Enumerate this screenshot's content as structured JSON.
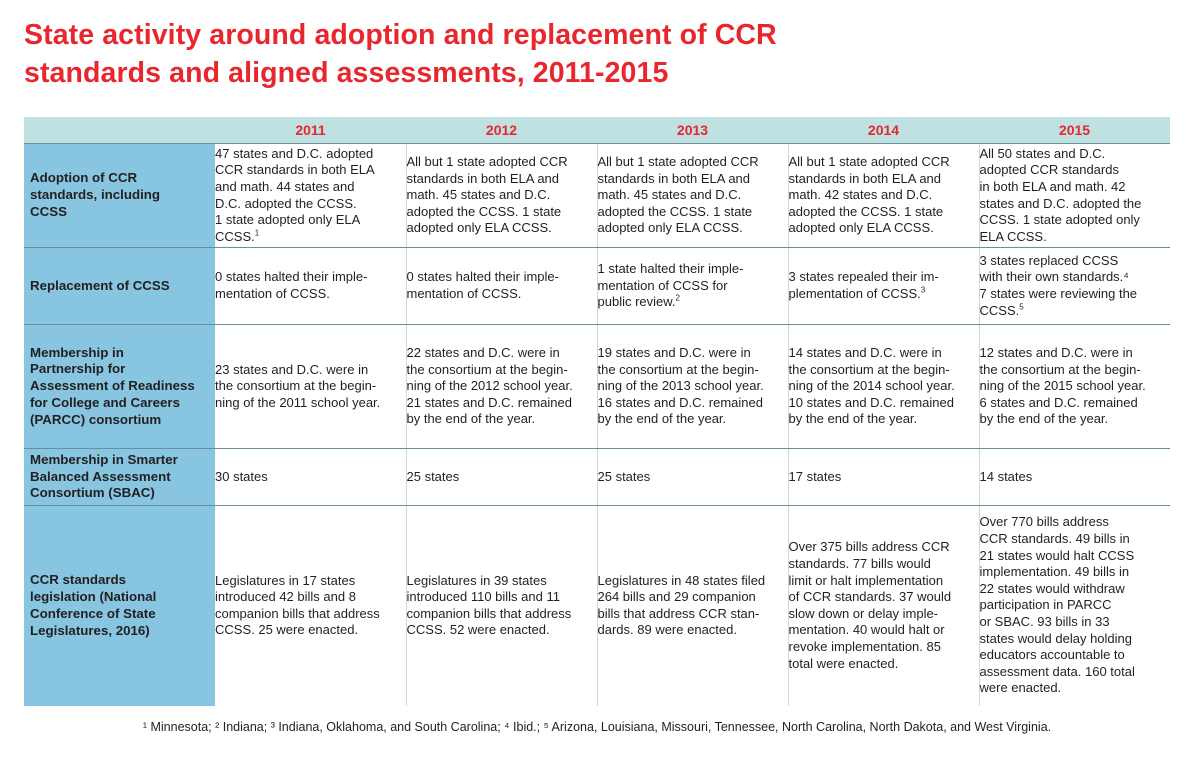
{
  "title": {
    "line1": "State activity around adoption and replacement of CCR",
    "line2": "standards and aligned assessments, 2011-2015"
  },
  "table": {
    "columns": [
      "2011",
      "2012",
      "2013",
      "2014",
      "2015"
    ],
    "rows": [
      {
        "header": [
          "Adoption of CCR",
          "standards, including",
          "CCSS"
        ],
        "cells": [
          {
            "text": "47 states and D.C. adopted\nCCR standards in both ELA\nand math. 44 states and\nD.C. adopted the CCSS.\n1 state adopted only ELA\nCCSS.",
            "sup": "1"
          },
          {
            "text": "All but 1 state adopted CCR\nstandards in both ELA and\nmath. 45 states and D.C.\nadopted the CCSS. 1 state\nadopted only ELA CCSS.",
            "sup": ""
          },
          {
            "text": "All but 1 state adopted CCR\nstandards in both ELA and\nmath. 45 states and D.C.\nadopted the CCSS. 1 state\nadopted only ELA CCSS.",
            "sup": ""
          },
          {
            "text": "All but 1 state adopted CCR\nstandards in both ELA and\nmath. 42 states and D.C.\nadopted the CCSS. 1 state\nadopted only ELA CCSS.",
            "sup": ""
          },
          {
            "text": "All 50 states and D.C.\nadopted CCR standards\nin both ELA and math. 42\nstates and D.C. adopted the\nCCSS. 1 state adopted only\nELA CCSS.",
            "sup": ""
          }
        ]
      },
      {
        "header": [
          "Replacement of CCSS"
        ],
        "cells": [
          {
            "text": "0 states halted their imple-\nmentation of CCSS.",
            "sup": ""
          },
          {
            "text": "0 states halted their imple-\nmentation of CCSS.",
            "sup": ""
          },
          {
            "text": "1 state halted their imple-\nmentation of CCSS for\npublic review.",
            "sup": "2"
          },
          {
            "text": "3 states repealed their im-\nplementation of CCSS.",
            "sup": "3"
          },
          {
            "text": "3 states replaced CCSS\nwith their own standards.⁴\n7 states were reviewing the\nCCSS.",
            "sup": "5"
          }
        ]
      },
      {
        "header": [
          "Membership in",
          "Partnership for",
          "Assessment of Readiness",
          "for College and Careers",
          "(PARCC) consortium"
        ],
        "cells": [
          {
            "text": "23 states and D.C. were in\nthe consortium at the begin-\nning of the 2011 school year.",
            "sup": ""
          },
          {
            "text": "22 states and D.C. were in\nthe consortium at the begin-\nning of the 2012 school year.\n21 states and D.C. remained\nby the end of the year.",
            "sup": ""
          },
          {
            "text": "19 states and D.C. were in\nthe consortium at the begin-\nning of the 2013 school year.\n16 states and D.C. remained\nby the end of the year.",
            "sup": ""
          },
          {
            "text": "14 states and D.C. were in\nthe consortium at the begin-\nning of the 2014 school year.\n10 states and D.C. remained\nby the end of the year.",
            "sup": ""
          },
          {
            "text": "12 states and D.C. were in\nthe consortium at the begin-\nning of the 2015 school year.\n6 states and D.C. remained\nby the end of the year.",
            "sup": ""
          }
        ]
      },
      {
        "header": [
          "Membership in Smarter",
          "Balanced Assessment",
          "Consortium (SBAC)"
        ],
        "cells": [
          {
            "text": "30 states",
            "sup": ""
          },
          {
            "text": "25 states",
            "sup": ""
          },
          {
            "text": "25 states",
            "sup": ""
          },
          {
            "text": "17 states",
            "sup": ""
          },
          {
            "text": "14 states",
            "sup": ""
          }
        ]
      },
      {
        "header": [
          "CCR standards",
          "legislation (National",
          "Conference of State",
          "Legislatures, 2016)"
        ],
        "cells": [
          {
            "text": "Legislatures in 17 states\nintroduced 42 bills and 8\ncompanion bills that address\nCCSS. 25 were enacted.",
            "sup": ""
          },
          {
            "text": "Legislatures in 39 states\nintroduced 110 bills and 11\ncompanion bills that address\nCCSS. 52 were enacted.",
            "sup": ""
          },
          {
            "text": "Legislatures in 48 states filed\n264 bills and 29 companion\nbills that address CCR stan-\ndards. 89 were enacted.",
            "sup": ""
          },
          {
            "text": "Over 375 bills address CCR\nstandards. 77 bills would\nlimit or halt implementation\nof CCR standards. 37 would\nslow down or delay imple-\nmentation. 40 would halt or\nrevoke implementation. 85\ntotal were enacted.",
            "sup": ""
          },
          {
            "text": "Over 770 bills address\nCCR standards. 49 bills in\n21 states would halt CCSS\nimplementation. 49 bills in\n22 states would withdraw\nparticipation in PARCC\nor SBAC. 93 bills in 33\nstates would delay holding\neducators accountable to\nassessment data. 160 total\nwere enacted.",
            "sup": ""
          }
        ]
      }
    ]
  },
  "footnote": "¹ Minnesota; ² Indiana; ³ Indiana, Oklahoma, and South Carolina; ⁴ Ibid.; ⁵ Arizona, Louisiana, Missouri, Tennessee, North Carolina, North Dakota, and West Virginia.",
  "colors": {
    "title": "#e8262d",
    "header_band": "#bfe1e1",
    "row_header": "#87c5e1",
    "text": "#231f20"
  }
}
